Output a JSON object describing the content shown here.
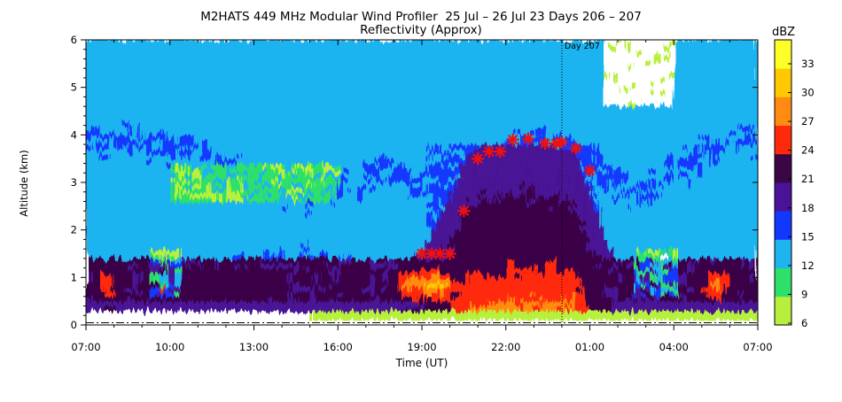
{
  "chart_data": {
    "type": "heatmap",
    "title": "M2HATS 449 MHz Modular Wind Profiler  25 Jul – 26 Jul 23 Days 206 – 207",
    "subtitle": "Reflectivity (Approx)",
    "xlabel": "Time (UT)",
    "ylabel": "Altitude (km)",
    "x_ticks": [
      "07:00",
      "10:00",
      "13:00",
      "16:00",
      "19:00",
      "22:00",
      "01:00",
      "04:00",
      "07:00"
    ],
    "x_range_hours": [
      0,
      24
    ],
    "y_ticks": [
      "0",
      "1",
      "2",
      "3",
      "4",
      "5",
      "6"
    ],
    "ylim": [
      0,
      6
    ],
    "day_marker": {
      "label": "Day 207",
      "x_hour": 17
    },
    "colorbar": {
      "unit": "dBZ",
      "labels": [
        "33",
        "30",
        "27",
        "24",
        "21",
        "18",
        "15",
        "12",
        "9",
        "6"
      ],
      "levels": [
        6,
        9,
        12,
        15,
        18,
        21,
        24,
        27,
        30,
        33,
        36
      ],
      "colors": [
        "#b7f03c",
        "#2ee06a",
        "#1eb4f0",
        "#1238ff",
        "#4a1296",
        "#3a0646",
        "#ff2a0a",
        "#ff8c10",
        "#ffc800",
        "#ffff28"
      ]
    },
    "cloud_top_markers": {
      "x_hour": [
        12.0,
        12.35,
        12.65,
        13.0,
        13.5,
        14.0,
        14.4,
        14.8,
        15.25,
        15.8,
        16.4,
        16.8,
        17.0,
        17.5,
        18.0
      ],
      "altitude_km": [
        1.5,
        1.5,
        1.5,
        1.5,
        2.4,
        3.5,
        3.65,
        3.65,
        3.9,
        3.92,
        3.82,
        3.82,
        3.85,
        3.72,
        3.25
      ]
    }
  }
}
